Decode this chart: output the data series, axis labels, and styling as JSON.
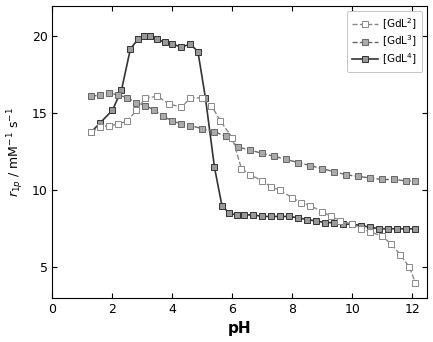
{
  "xlabel": "pH",
  "xlim": [
    0,
    12.5
  ],
  "ylim": [
    3,
    22
  ],
  "yticks": [
    5,
    10,
    15,
    20
  ],
  "xticks": [
    0,
    2,
    4,
    6,
    8,
    10,
    12
  ],
  "series": [
    {
      "label": "[GdL$^2$]",
      "linestyle": "--",
      "linecolor": "#888888",
      "markerface": "white",
      "markeredge": "#888888",
      "linewidth": 1.0,
      "markersize": 4.5,
      "x": [
        1.3,
        1.6,
        1.9,
        2.2,
        2.5,
        2.8,
        3.1,
        3.5,
        3.9,
        4.3,
        4.6,
        5.0,
        5.3,
        5.6,
        6.0,
        6.3,
        6.6,
        7.0,
        7.3,
        7.6,
        8.0,
        8.3,
        8.6,
        9.0,
        9.3,
        9.6,
        10.0,
        10.3,
        10.6,
        11.0,
        11.3,
        11.6,
        11.9,
        12.1
      ],
      "y": [
        13.8,
        14.1,
        14.2,
        14.3,
        14.5,
        15.2,
        16.0,
        16.1,
        15.6,
        15.4,
        16.0,
        16.0,
        15.5,
        14.5,
        13.4,
        11.4,
        11.0,
        10.6,
        10.2,
        10.0,
        9.5,
        9.2,
        9.0,
        8.6,
        8.3,
        8.0,
        7.8,
        7.5,
        7.3,
        7.0,
        6.5,
        5.8,
        5.0,
        4.0
      ]
    },
    {
      "label": "[GdL$^3$]",
      "linestyle": "--",
      "linecolor": "#666666",
      "markerface": "#aaaaaa",
      "markeredge": "#666666",
      "linewidth": 1.0,
      "markersize": 4.5,
      "x": [
        1.3,
        1.6,
        1.9,
        2.2,
        2.5,
        2.8,
        3.1,
        3.4,
        3.7,
        4.0,
        4.3,
        4.6,
        5.0,
        5.4,
        5.8,
        6.2,
        6.6,
        7.0,
        7.4,
        7.8,
        8.2,
        8.6,
        9.0,
        9.4,
        9.8,
        10.2,
        10.6,
        11.0,
        11.4,
        11.8,
        12.1
      ],
      "y": [
        16.1,
        16.2,
        16.3,
        16.2,
        16.0,
        15.7,
        15.5,
        15.2,
        14.8,
        14.5,
        14.3,
        14.2,
        14.0,
        13.8,
        13.5,
        12.8,
        12.6,
        12.4,
        12.2,
        12.0,
        11.8,
        11.6,
        11.4,
        11.2,
        11.0,
        10.9,
        10.8,
        10.7,
        10.7,
        10.6,
        10.6
      ]
    },
    {
      "label": "[GdL$^4$]",
      "linestyle": "-",
      "linecolor": "#333333",
      "markerface": "#999999",
      "markeredge": "#333333",
      "linewidth": 1.2,
      "markersize": 4.5,
      "x": [
        1.3,
        1.6,
        2.0,
        2.3,
        2.6,
        2.85,
        3.05,
        3.25,
        3.5,
        3.75,
        4.0,
        4.3,
        4.6,
        4.85,
        5.1,
        5.4,
        5.65,
        5.9,
        6.15,
        6.4,
        6.7,
        7.0,
        7.3,
        7.6,
        7.9,
        8.2,
        8.5,
        8.8,
        9.1,
        9.4,
        9.7,
        10.0,
        10.3,
        10.6,
        10.9,
        11.2,
        11.5,
        11.8,
        12.1
      ],
      "y": [
        13.8,
        14.4,
        15.2,
        16.5,
        19.2,
        19.8,
        20.0,
        20.0,
        19.8,
        19.6,
        19.5,
        19.3,
        19.5,
        19.0,
        16.0,
        11.5,
        9.0,
        8.5,
        8.4,
        8.4,
        8.4,
        8.3,
        8.3,
        8.3,
        8.3,
        8.2,
        8.1,
        8.0,
        7.9,
        7.9,
        7.8,
        7.8,
        7.7,
        7.6,
        7.5,
        7.5,
        7.5,
        7.5,
        7.5
      ]
    }
  ]
}
